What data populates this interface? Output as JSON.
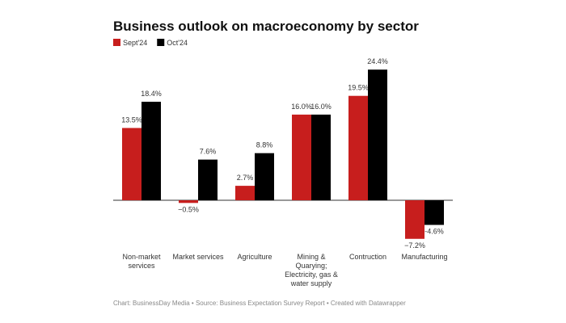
{
  "chart_data": {
    "type": "bar",
    "title": "Business outlook on macroeconomy by sector",
    "categories": [
      "Non-market services",
      "Market services",
      "Agriculture",
      "Mining & Quarying; Electricity, gas & water supply",
      "Contruction",
      "Manufacturing"
    ],
    "series": [
      {
        "name": "Sept'24",
        "color": "#c71e1d",
        "values": [
          13.5,
          -0.5,
          2.7,
          16.0,
          19.5,
          -7.2
        ],
        "value_labels": [
          "13.5%",
          "−0.5%",
          "2.7%",
          "16.0%",
          "19.5%",
          "−7.2%"
        ]
      },
      {
        "name": "Oct'24",
        "color": "#000000",
        "values": [
          18.4,
          7.6,
          8.8,
          16.0,
          24.4,
          -4.6
        ],
        "value_labels": [
          "18.4%",
          "7.6%",
          "8.8%",
          "16.0%",
          "24.4%",
          "-4.6%"
        ]
      }
    ],
    "ylim": [
      -9,
      26
    ],
    "source": "Chart: BusinessDay Media • Source: Business Expectation Survey Report • Created with Datawrapper"
  }
}
